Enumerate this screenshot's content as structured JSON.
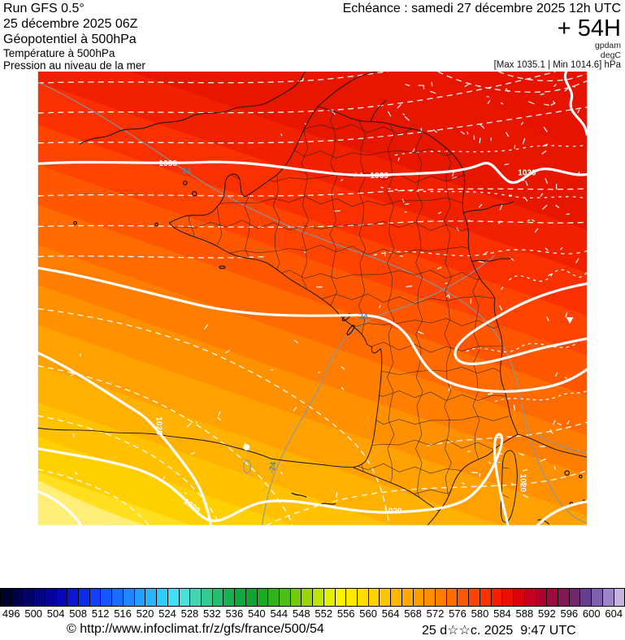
{
  "header": {
    "left": {
      "run": "Run GFS 0.5°",
      "date": "25 décembre 2025 06Z",
      "field1": "Géopotentiel à 500hPa",
      "field2": "Température à 500hPa",
      "field3": "Pression au niveau de la mer"
    },
    "right": {
      "echeance": "Echéance : samedi 27 décembre 2025 12h UTC",
      "forecast_hour": "+ 54H",
      "unit1": "gpdam",
      "unit2": "degC",
      "minmax": "[Max 1035.1 | Min 1014.6] hPa"
    }
  },
  "map": {
    "labels": [
      {
        "text": "1030"
      },
      {
        "text": "1030"
      },
      {
        "text": "1030"
      },
      {
        "text": "1025"
      },
      {
        "text": "1020"
      },
      {
        "text": "1020"
      },
      {
        "text": "1020"
      },
      {
        "text": "24"
      },
      {
        "text": "24"
      },
      {
        "text": "-24"
      }
    ]
  },
  "scale": {
    "values": [
      "496",
      "500",
      "504",
      "508",
      "512",
      "516",
      "520",
      "524",
      "528",
      "532",
      "536",
      "540",
      "544",
      "548",
      "552",
      "556",
      "560",
      "564",
      "568",
      "572",
      "576",
      "580",
      "584",
      "588",
      "592",
      "596",
      "600",
      "604"
    ],
    "cell_colors": [
      "#01012E",
      "#02024A",
      "#030366",
      "#040482",
      "#05059E",
      "#0606BA",
      "#0B16D2",
      "#0F2AE8",
      "#1340FA",
      "#1656FF",
      "#1A6EFF",
      "#1E86FF",
      "#229EFF",
      "#26B6FF",
      "#2ACEFF",
      "#3EE0F8",
      "#48E0D8",
      "#40D6B4",
      "#32CA90",
      "#24BE6E",
      "#16B250",
      "#0FAA3E",
      "#0EA630",
      "#1AAA24",
      "#30B21A",
      "#4EBE12",
      "#72CA0A",
      "#98D604",
      "#BEE400",
      "#E2F000",
      "#FAF400",
      "#FFEA00",
      "#FFDE00",
      "#FFD200",
      "#FFC600",
      "#FFB800",
      "#FFAA00",
      "#FF9C00",
      "#FF8E00",
      "#FF7E00",
      "#FF6C00",
      "#FF5800",
      "#FF4400",
      "#FF3000",
      "#FA1E00",
      "#EC0E00",
      "#DA0410",
      "#C6001E",
      "#B2002E",
      "#9C0A40",
      "#861854",
      "#70266C",
      "#663E90",
      "#8060AE",
      "#9E84C8",
      "#C6B4DE"
    ]
  },
  "footer": {
    "copyright": "© http://www.infoclimat.fr/z/gfs/france/500/54",
    "datetime": "25 d☆☆c. 2025  9:47 UTC"
  }
}
